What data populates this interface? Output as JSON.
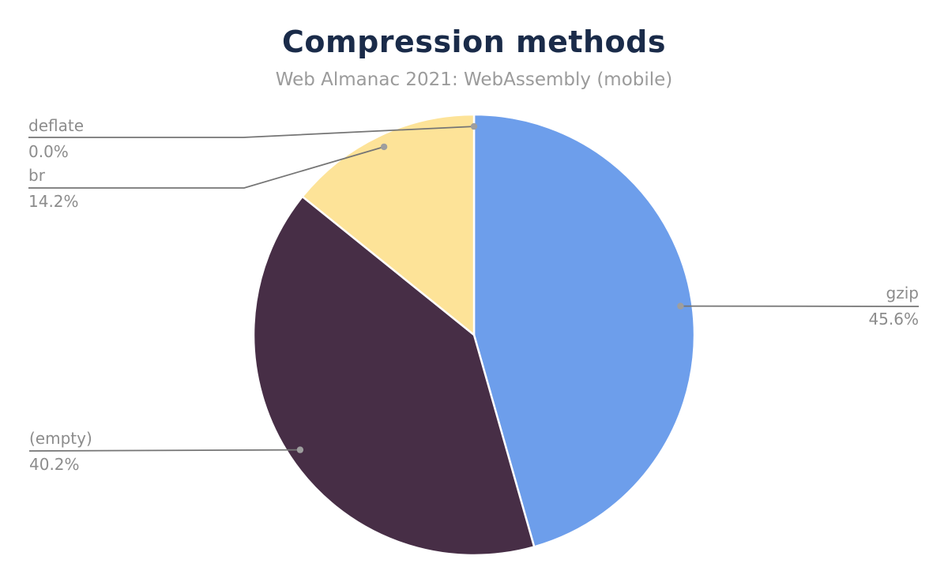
{
  "title": "Compression methods",
  "subtitle": "Web Almanac 2021: WebAssembly (mobile)",
  "chart_data": {
    "type": "pie",
    "title": "Compression methods",
    "subtitle": "Web Almanac 2021: WebAssembly (mobile)",
    "unit": "%",
    "direction": "clockwise",
    "start_angle_deg": 0,
    "legend_position": "callout-labels",
    "grid": false,
    "slices": [
      {
        "label": "gzip",
        "value": 45.6,
        "display": "45.6%",
        "color": "#6d9eeb"
      },
      {
        "label": "(empty)",
        "value": 40.2,
        "display": "40.2%",
        "color": "#472e46"
      },
      {
        "label": "br",
        "value": 14.2,
        "display": "14.2%",
        "color": "#fde398"
      },
      {
        "label": "deflate",
        "value": 0.0,
        "display": "0.0%",
        "color": "#9e9e9e"
      }
    ]
  },
  "callouts": {
    "deflate": {
      "name": "deflate",
      "value": "0.0%"
    },
    "br": {
      "name": "br",
      "value": "14.2%"
    },
    "empty": {
      "name": "(empty)",
      "value": "40.2%"
    },
    "gzip": {
      "name": "gzip",
      "value": "45.6%"
    }
  },
  "style": {
    "title_color": "#1a2b49",
    "subtitle_color": "#9b9b9b",
    "label_color": "#8c8c8c",
    "connector_color": "#757575",
    "dot_color": "#9e9e9e",
    "background": "#ffffff"
  }
}
